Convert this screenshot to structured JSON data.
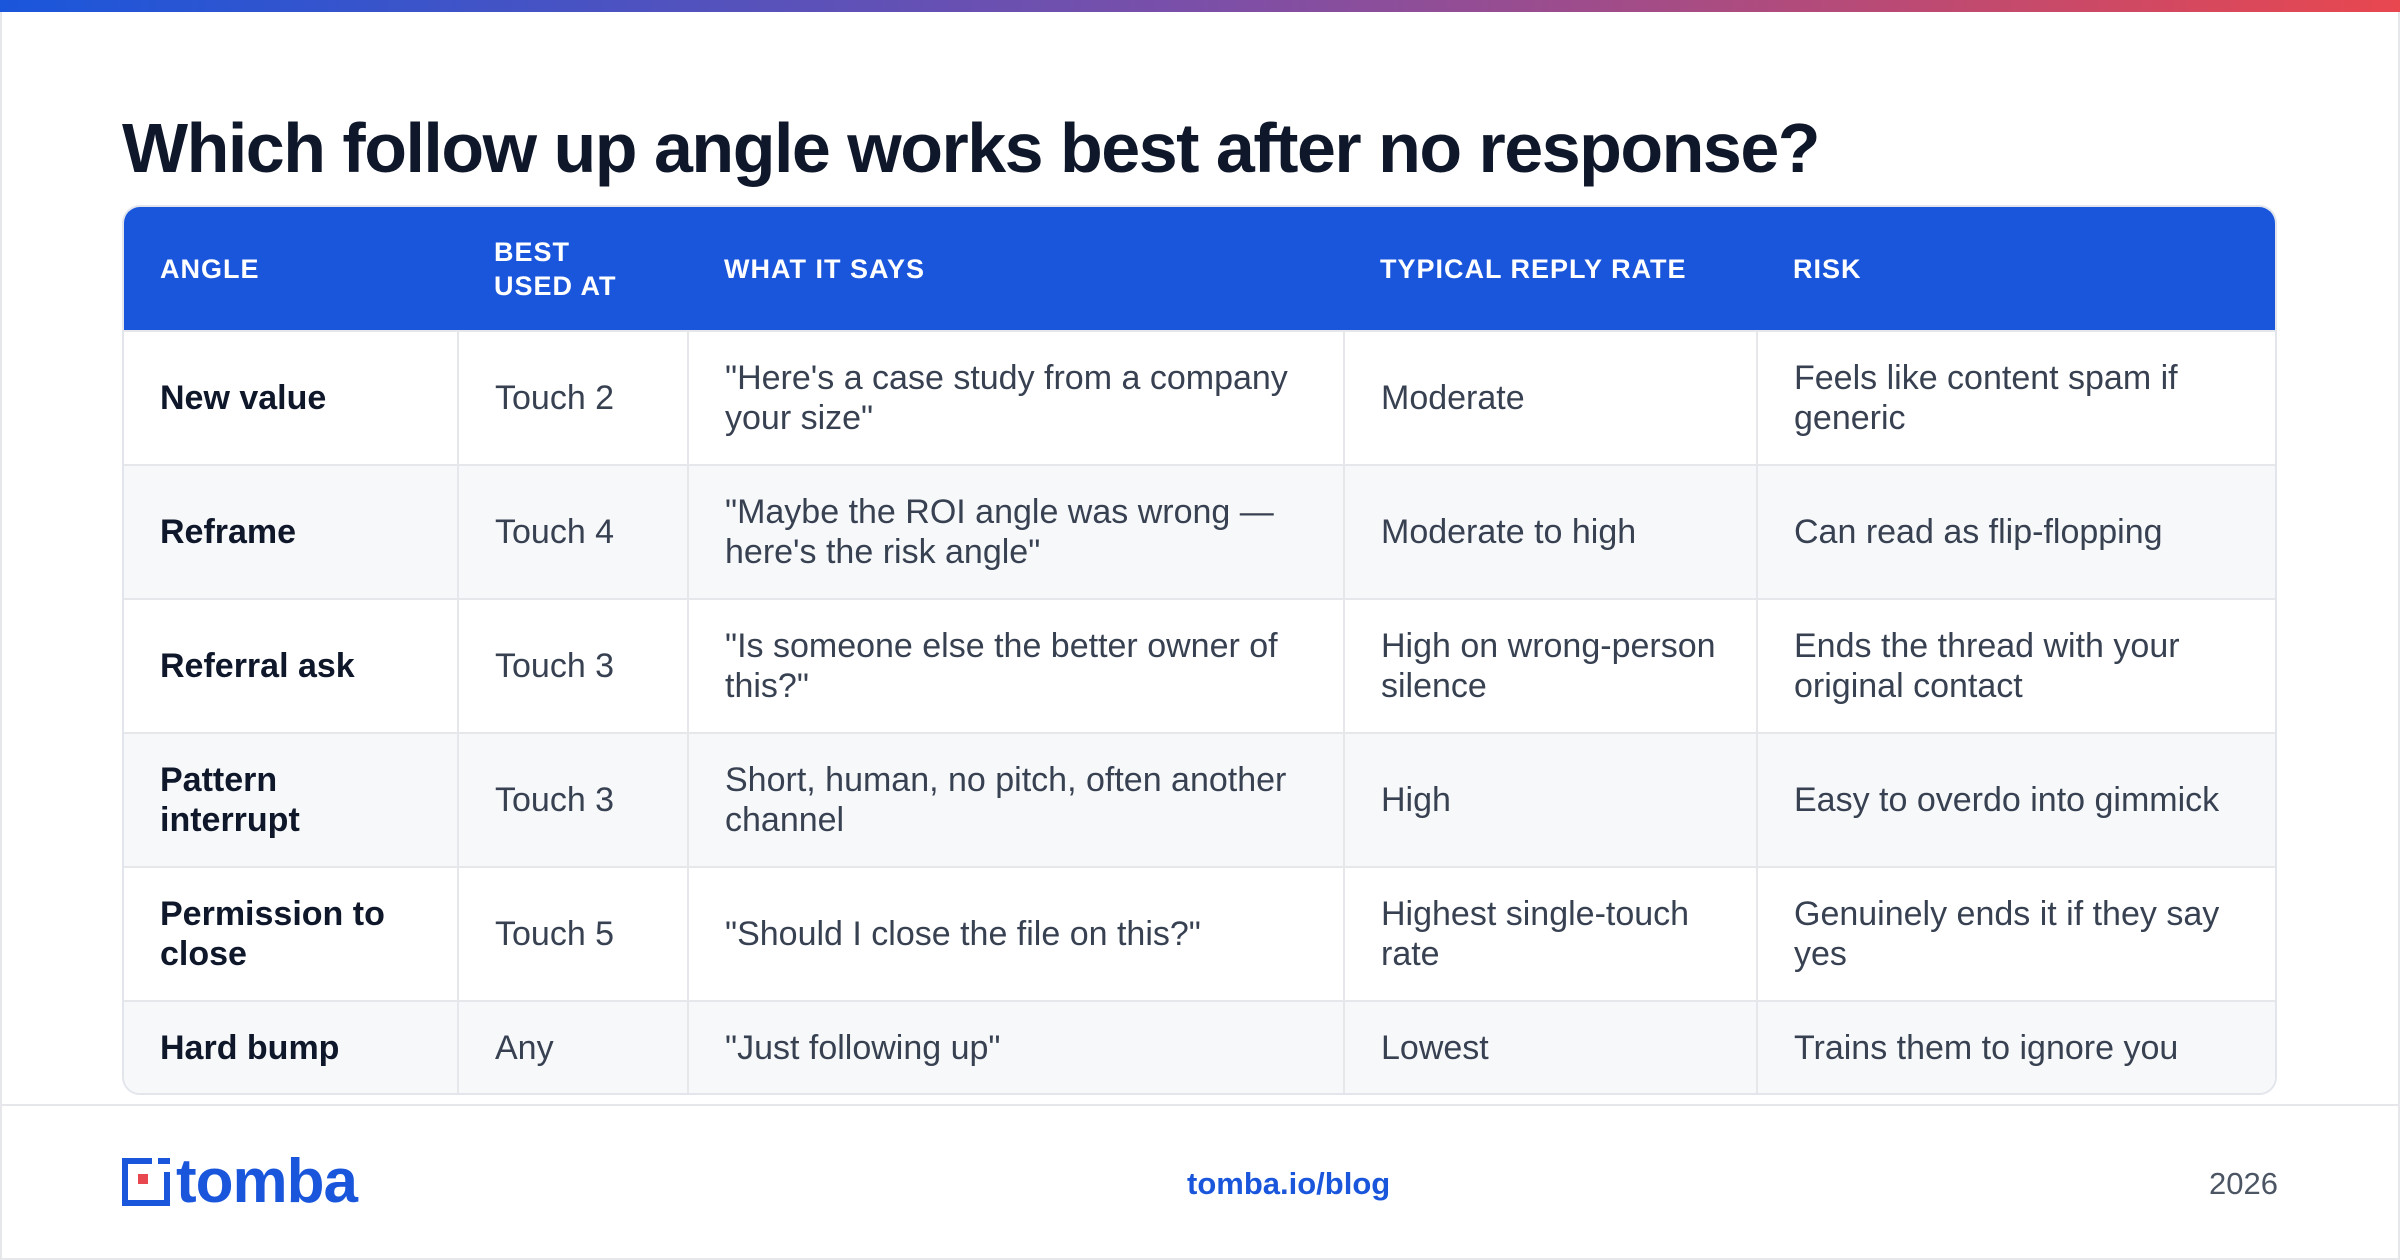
{
  "title": "Which follow up angle works best after no response?",
  "table": {
    "headers": [
      "ANGLE",
      "BEST USED AT",
      "WHAT IT SAYS",
      "TYPICAL REPLY RATE",
      "RISK"
    ],
    "rows": [
      [
        "New value",
        "Touch 2",
        "\"Here's a case study from a company your size\"",
        "Moderate",
        "Feels like content spam if generic"
      ],
      [
        "Reframe",
        "Touch 4",
        "\"Maybe the ROI angle was wrong — here's the risk angle\"",
        "Moderate to high",
        "Can read as flip-flopping"
      ],
      [
        "Referral ask",
        "Touch 3",
        "\"Is someone else the better owner of this?\"",
        "High on wrong-person silence",
        "Ends the thread with your original contact"
      ],
      [
        "Pattern interrupt",
        "Touch 3",
        "Short, human, no pitch, often another channel",
        "High",
        "Easy to overdo into gimmick"
      ],
      [
        "Permission to close",
        "Touch 5",
        "\"Should I close the file on this?\"",
        "Highest single-touch rate",
        "Genuinely ends it if they say yes"
      ],
      [
        "Hard bump",
        "Any",
        "\"Just following up\"",
        "Lowest",
        "Trains them to ignore you"
      ]
    ]
  },
  "footer": {
    "logo_text": "tomba",
    "url": "tomba.io/blog",
    "year": "2026"
  },
  "colors": {
    "accent": "#1a56db",
    "logo_red": "#e8474f",
    "gradient": [
      "#1a56db",
      "#7b4fa8",
      "#e8474f"
    ]
  }
}
